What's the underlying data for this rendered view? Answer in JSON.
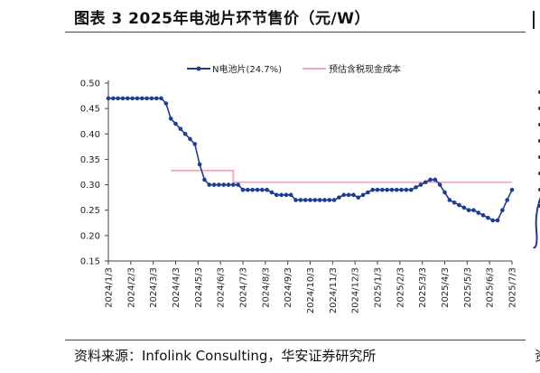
{
  "figure": {
    "title": "图表 3  2025年电池片环节售价（元/W）",
    "source": "资料来源：Infolink Consulting，华安证券研究所",
    "cropped_right_char": "资"
  },
  "colors": {
    "series_n": "#1b3d95",
    "series_cost": "#f4a9b5",
    "axis": "#444444",
    "text": "#111111"
  },
  "chart_data": {
    "type": "line",
    "ylim": [
      0.15,
      0.5
    ],
    "yticks": [
      "0.50",
      "0.45",
      "0.40",
      "0.35",
      "0.30",
      "0.25",
      "0.20",
      "0.15"
    ],
    "grid": false,
    "legend_position": "top",
    "x_ticks": [
      "2024/1/3",
      "2024/2/3",
      "2024/3/3",
      "2024/4/3",
      "2024/5/3",
      "2024/6/3",
      "2024/7/3",
      "2024/8/3",
      "2024/9/3",
      "2024/10/3",
      "2024/11/3",
      "2024/12/3",
      "2025/1/3",
      "2025/2/3",
      "2025/3/3",
      "2025/4/3",
      "2025/5/3",
      "2025/6/3",
      "2025/7/3"
    ],
    "series": [
      {
        "name": "N电池片(24.7%)",
        "marker": "circle",
        "values": [
          0.47,
          0.47,
          0.47,
          0.47,
          0.47,
          0.47,
          0.47,
          0.47,
          0.47,
          0.47,
          0.47,
          0.47,
          0.46,
          0.43,
          0.42,
          0.41,
          0.4,
          0.39,
          0.38,
          0.34,
          0.31,
          0.3,
          0.3,
          0.3,
          0.3,
          0.3,
          0.3,
          0.3,
          0.29,
          0.29,
          0.29,
          0.29,
          0.29,
          0.29,
          0.285,
          0.28,
          0.28,
          0.28,
          0.28,
          0.27,
          0.27,
          0.27,
          0.27,
          0.27,
          0.27,
          0.27,
          0.27,
          0.27,
          0.275,
          0.28,
          0.28,
          0.28,
          0.275,
          0.28,
          0.285,
          0.29,
          0.29,
          0.29,
          0.29,
          0.29,
          0.29,
          0.29,
          0.29,
          0.29,
          0.295,
          0.3,
          0.305,
          0.31,
          0.31,
          0.3,
          0.285,
          0.27,
          0.265,
          0.26,
          0.255,
          0.25,
          0.25,
          0.245,
          0.24,
          0.235,
          0.23,
          0.23,
          0.25,
          0.27,
          0.29
        ]
      },
      {
        "name": "预估含税现金成本",
        "marker": "none",
        "segments": [
          {
            "from_index": 13,
            "to_index": 26,
            "value": 0.328
          },
          {
            "from_index": 26,
            "to_index": 84,
            "value": 0.305
          }
        ]
      }
    ]
  }
}
